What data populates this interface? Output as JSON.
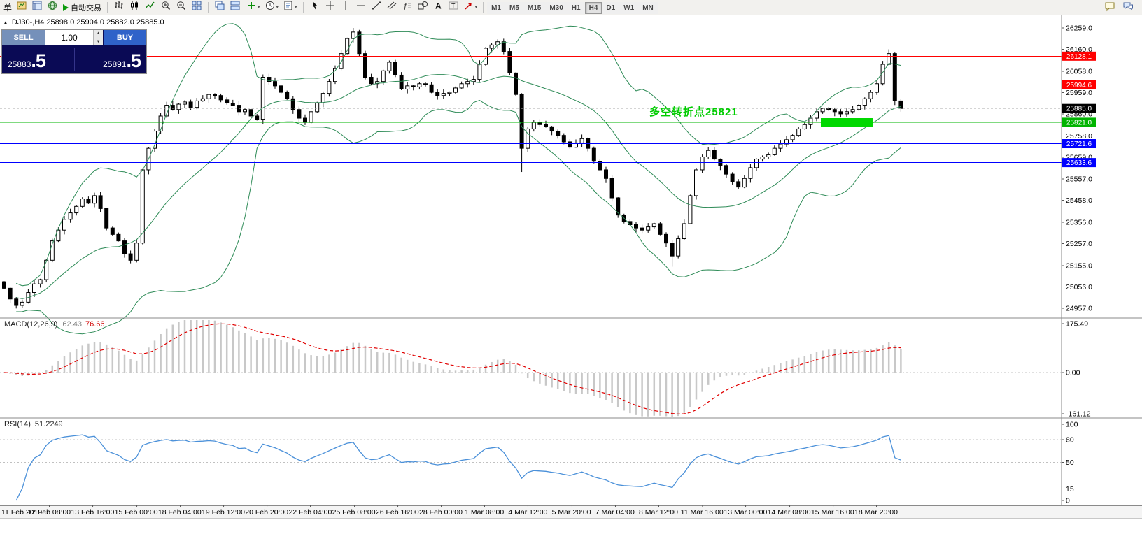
{
  "toolbar": {
    "new_order_label": "单",
    "autotrade_label": "自动交易",
    "timeframes": [
      "M1",
      "M5",
      "M15",
      "M30",
      "H1",
      "H4",
      "D1",
      "W1",
      "MN"
    ],
    "active_timeframe": "H4",
    "left_icons": [
      "chart-window-icon",
      "market-watch-icon",
      "navigator-icon"
    ],
    "chart_type_icons": [
      "bar-chart-icon",
      "candlestick-icon",
      "line-chart-icon"
    ],
    "zoom_icons": [
      "zoom-in-icon",
      "zoom-out-icon",
      "tile-windows-icon"
    ],
    "window_icons": [
      "cascade-icon",
      "arrange-icon"
    ],
    "insert_icons": [
      "add-indicator-icon",
      "period-icon",
      "template-icon"
    ],
    "tool_icons": [
      "cursor-icon",
      "crosshair-icon",
      "vertical-line-icon",
      "horizontal-line-icon",
      "trendline-icon",
      "equidistant-channel-icon",
      "fibonacci-icon",
      "shapes-icon",
      "text-icon",
      "label-icon",
      "arrows-icon"
    ],
    "right_icons": [
      "comment-icon",
      "chat-icon"
    ],
    "dropdown_icons": [
      "add-indicator-icon",
      "period-icon",
      "template-icon",
      "arrows-icon"
    ]
  },
  "symbol_info": {
    "toggle_icon": "▲",
    "text": "DJ30-,H4 25898.0 25904.0 25882.0 25885.0"
  },
  "one_click": {
    "sell_label": "SELL",
    "buy_label": "BUY",
    "volume": "1.00",
    "sell_price_main": "25883",
    "sell_price_big": ".5",
    "buy_price_main": "25891",
    "buy_price_big": ".5"
  },
  "indicators": {
    "macd_label": "MACD(12,26,9)",
    "macd_value_main": "62.43",
    "macd_value_signal": "76.66",
    "rsi_label": "RSI(14)",
    "rsi_value": "51.2249"
  },
  "annotation": {
    "text": "多空转折点25821",
    "color": "#00cc00"
  },
  "highlight": {
    "color": "#00d800"
  },
  "chart_data": {
    "type": "candlestick",
    "symbol": "DJ30-",
    "timeframe": "H4",
    "current_bar": {
      "open": 25898.0,
      "high": 25904.0,
      "low": 25882.0,
      "close": 25885.0
    },
    "scale": {
      "top_price": 26259.0,
      "bottom_price": 24957.0
    },
    "y_axis_labels": [
      "26259.0",
      "26160.0",
      "26058.0",
      "25959.0",
      "25860.0",
      "25758.0",
      "25659.0",
      "25557.0",
      "25458.0",
      "25356.0",
      "25257.0",
      "25155.0",
      "25056.0",
      "24957.0"
    ],
    "first_open": 25080,
    "closes": [
      25050,
      25000,
      24970,
      24985,
      25030,
      25070,
      25090,
      25180,
      25270,
      25320,
      25370,
      25400,
      25430,
      25465,
      25445,
      25480,
      25420,
      25330,
      25300,
      25270,
      25210,
      25180,
      25260,
      25600,
      25700,
      25780,
      25850,
      25900,
      25880,
      25905,
      25915,
      25890,
      25920,
      25930,
      25950,
      25945,
      25925,
      25910,
      25900,
      25870,
      25880,
      25850,
      25835,
      26030,
      26010,
      25990,
      25960,
      25930,
      25880,
      25840,
      25820,
      25870,
      25910,
      25955,
      26010,
      26070,
      26140,
      26210,
      26240,
      26140,
      26030,
      26000,
      26010,
      26060,
      26100,
      26040,
      25975,
      25990,
      25985,
      26000,
      25995,
      25960,
      25945,
      25955,
      25960,
      25980,
      26000,
      26010,
      26020,
      26090,
      26165,
      26180,
      26195,
      26150,
      26050,
      25950,
      25700,
      25790,
      25820,
      25810,
      25800,
      25780,
      25760,
      25730,
      25705,
      25725,
      25745,
      25700,
      25640,
      25600,
      25560,
      25470,
      25390,
      25360,
      25345,
      25330,
      25320,
      25335,
      25350,
      25300,
      25260,
      25200,
      25280,
      25350,
      25480,
      25600,
      25660,
      25690,
      25650,
      25620,
      25580,
      25545,
      25520,
      25560,
      25610,
      25650,
      25660,
      25670,
      25700,
      25720,
      25740,
      25760,
      25790,
      25810,
      25840,
      25870,
      25885,
      25880,
      25870,
      25860,
      25870,
      25880,
      25900,
      25930,
      25960,
      26000,
      26090,
      26140,
      25920,
      25885
    ],
    "spike_highs": {
      "58": 26259,
      "147": 26160
    },
    "spike_lows": {
      "86": 25590,
      "111": 25150
    },
    "bollinger": {
      "period": 20,
      "deviation": 2,
      "color": "#2e8b57"
    },
    "levels": [
      {
        "label": "26128.1",
        "price": 26128.1,
        "color": "#ff0000"
      },
      {
        "label": "25994.6",
        "price": 25994.6,
        "color": "#ff0000"
      },
      {
        "label": "25821.0",
        "price": 25821.0,
        "color": "#00b400"
      },
      {
        "label": "25721.6",
        "price": 25721.6,
        "color": "#0000ff"
      },
      {
        "label": "25633.6",
        "price": 25633.6,
        "color": "#0000ff"
      }
    ],
    "current_price": {
      "label": "25885.0",
      "value": 25885.0
    },
    "macd": {
      "axis_labels": [
        "175.49",
        "0.00",
        "-161.12"
      ],
      "axis_values": [
        175.49,
        0,
        -161.12
      ],
      "hist_color": "#c8c8c8",
      "signal_color": "#e00000"
    },
    "rsi": {
      "period": 14,
      "axis_labels": [
        "100",
        "80",
        "50",
        "15",
        "0"
      ],
      "axis_values": [
        100,
        80,
        50,
        15,
        0
      ],
      "levels": [
        80,
        50,
        15
      ],
      "color": "#4a90d9"
    },
    "time_labels": [
      "11 Feb 2019",
      "12 Feb 08:00",
      "13 Feb 16:00",
      "15 Feb 00:00",
      "18 Feb 04:00",
      "19 Feb 12:00",
      "20 Feb 20:00",
      "22 Feb 04:00",
      "25 Feb 08:00",
      "26 Feb 16:00",
      "28 Feb 00:00",
      "1 Mar 08:00",
      "4 Mar 12:00",
      "5 Mar 20:00",
      "7 Mar 04:00",
      "8 Mar 12:00",
      "11 Mar 16:00",
      "13 Mar 00:00",
      "14 Mar 08:00",
      "15 Mar 16:00",
      "18 Mar 20:00"
    ]
  }
}
